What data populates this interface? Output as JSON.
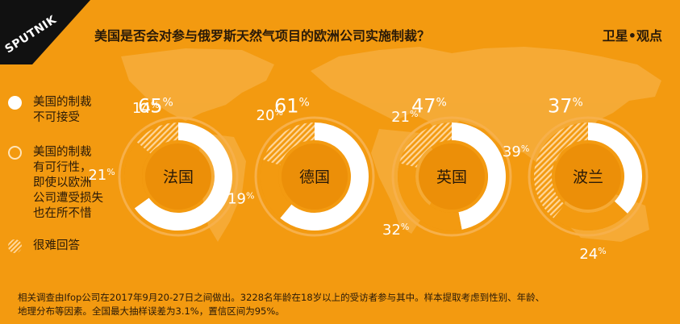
{
  "header": {
    "logo_text": "SPUTNIK",
    "title": "美国是否会对参与俄罗斯天然气项目的欧洲公司实施制裁？",
    "brand": "卫星•观点"
  },
  "legend": [
    {
      "key": "yes",
      "label": "美国的制裁\n不可接受",
      "style": "white"
    },
    {
      "key": "maybe",
      "label": "美国的制裁\n有可行性，\n即使以欧洲\n公司遭受损失\n也在所不惜",
      "style": "orange"
    },
    {
      "key": "unsure",
      "label": "很难回答",
      "style": "hatch"
    }
  ],
  "colors": {
    "background": "#f39a10",
    "ring_white": "#ffffff",
    "ring_hatch": "#ffd699",
    "text_dark": "#2a1a08"
  },
  "chart_data": {
    "type": "pie",
    "variant": "donut",
    "percent_suffix": "%",
    "series_names": [
      "美国的制裁不可接受",
      "美国的制裁有可行性，即使以欧洲公司遭受损失也在所不惜",
      "很难回答"
    ],
    "countries": [
      {
        "name": "法国",
        "values": [
          65,
          21,
          14
        ]
      },
      {
        "name": "德国",
        "values": [
          61,
          19,
          20
        ]
      },
      {
        "name": "英国",
        "values": [
          47,
          32,
          21
        ]
      },
      {
        "name": "波兰",
        "values": [
          37,
          24,
          39
        ]
      }
    ]
  },
  "footnote": {
    "line1": "相关调查由Ifop公司在2017年9月20-27日之间做出。3228名年龄在18岁以上的受访者参与其中。样本提取考虑到性别、年龄、",
    "line2": "地理分布等因素。全国最大抽样误差为3.1%，置信区间为95%。"
  }
}
